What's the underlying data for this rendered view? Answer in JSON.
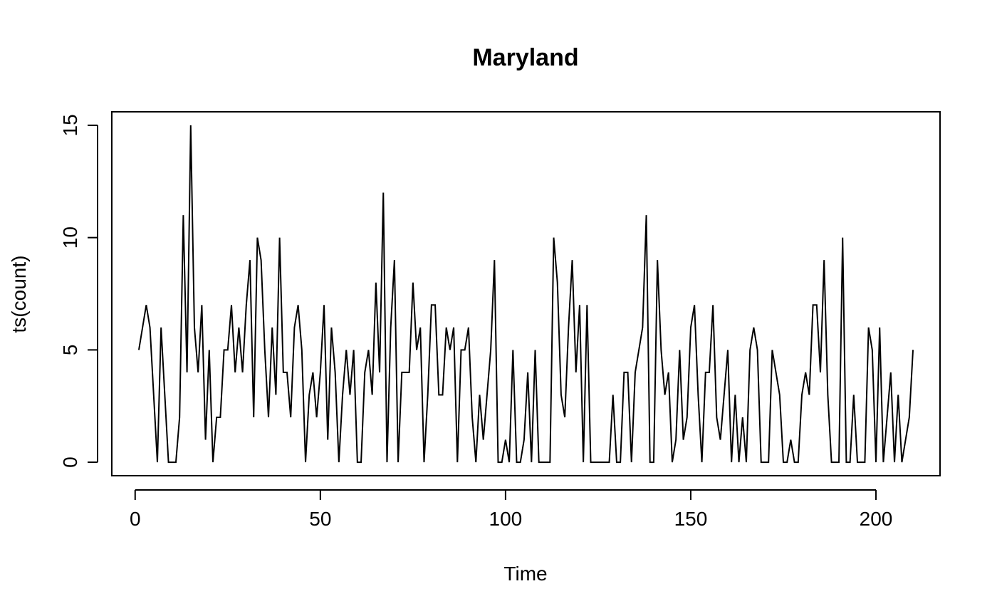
{
  "chart_data": {
    "type": "line",
    "title": "Maryland",
    "xlabel": "Time",
    "ylabel": "ts(count)",
    "xlim": [
      -6.3,
      217.3
    ],
    "ylim": [
      -0.6,
      15.6
    ],
    "x_ticks": [
      0,
      50,
      100,
      150,
      200
    ],
    "y_ticks": [
      0,
      5,
      10,
      15
    ],
    "grid": false,
    "legend": "none",
    "colors": {
      "line": "#000000",
      "background": "#ffffff"
    },
    "x_start": 1,
    "series": [
      {
        "values": [
          5,
          6,
          7,
          6,
          3,
          0,
          6,
          3,
          0,
          0,
          0,
          2,
          11,
          4,
          15,
          6,
          4,
          7,
          1,
          5,
          0,
          2,
          2,
          5,
          5,
          7,
          4,
          6,
          4,
          7,
          9,
          2,
          10,
          9,
          5,
          2,
          6,
          3,
          10,
          4,
          4,
          2,
          6,
          7,
          5,
          0,
          3,
          4,
          2,
          4,
          7,
          1,
          6,
          4,
          0,
          3,
          5,
          3,
          5,
          0,
          0,
          4,
          5,
          3,
          8,
          4,
          12,
          0,
          6,
          9,
          0,
          4,
          4,
          4,
          8,
          5,
          6,
          0,
          3,
          7,
          7,
          3,
          3,
          6,
          5,
          6,
          0,
          5,
          5,
          6,
          2,
          0,
          3,
          1,
          3,
          5,
          9,
          0,
          0,
          1,
          0,
          5,
          0,
          0,
          1,
          4,
          0,
          5,
          0,
          0,
          0,
          0,
          10,
          8,
          3,
          2,
          6,
          9,
          4,
          7,
          0,
          7,
          0,
          0,
          0,
          0,
          0,
          0,
          3,
          0,
          0,
          4,
          4,
          0,
          4,
          5,
          6,
          11,
          0,
          0,
          9,
          5,
          3,
          4,
          0,
          1,
          5,
          1,
          2,
          6,
          7,
          3,
          0,
          4,
          4,
          7,
          2,
          1,
          3,
          5,
          0,
          3,
          0,
          2,
          0,
          5,
          6,
          5,
          0,
          0,
          0,
          5,
          4,
          3,
          0,
          0,
          1,
          0,
          0,
          3,
          4,
          3,
          7,
          7,
          4,
          9,
          3,
          0,
          0,
          0,
          10,
          0,
          0,
          3,
          0,
          0,
          0,
          6,
          5,
          0,
          6,
          0,
          2,
          4,
          0,
          3,
          0,
          1,
          2,
          5
        ]
      }
    ]
  }
}
